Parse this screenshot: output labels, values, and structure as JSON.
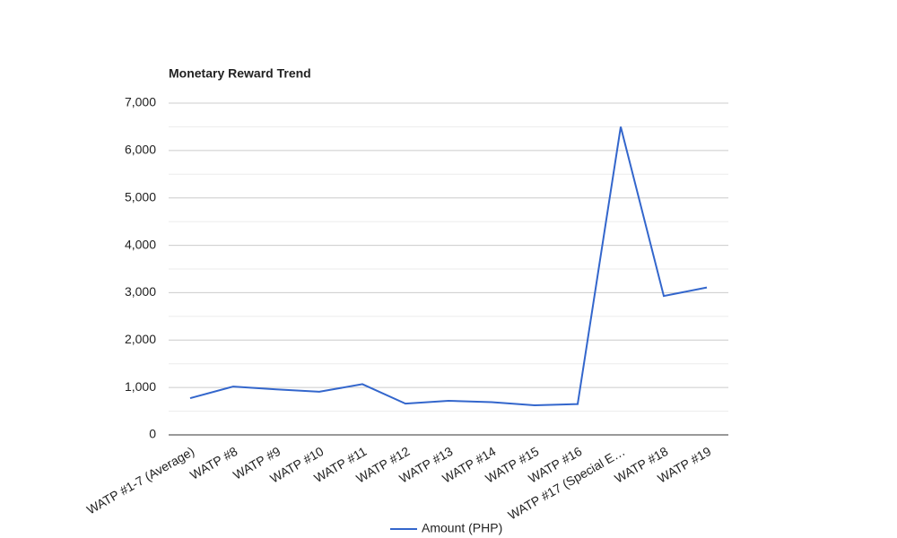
{
  "chart_data": {
    "type": "line",
    "title": "Monetary Reward Trend",
    "categories": [
      "WATP #1-7 (Average)",
      "WATP #8",
      "WATP #9",
      "WATP #10",
      "WATP #11",
      "WATP #12",
      "WATP #13",
      "WATP #14",
      "WATP #15",
      "WATP #16",
      "WATP #17 (Special E…",
      "WATP #18",
      "WATP #19"
    ],
    "series": [
      {
        "name": "Amount (PHP)",
        "color": "#3366cc",
        "values": [
          775,
          1020,
          960,
          910,
          1070,
          660,
          720,
          690,
          625,
          650,
          6500,
          2930,
          3110
        ]
      }
    ],
    "ylim": [
      0,
      7000
    ],
    "yticks": [
      0,
      {
        "value": 1000,
        "label": "1,000"
      },
      {
        "value": 2000,
        "label": "2,000"
      },
      {
        "value": 3000,
        "label": "3,000"
      },
      {
        "value": 4000,
        "label": "4,000"
      },
      {
        "value": 5000,
        "label": "5,000"
      },
      {
        "value": 6000,
        "label": "6,000"
      },
      {
        "value": 7000,
        "label": "7,000"
      }
    ],
    "grid": true,
    "minor_grid": true,
    "legend": "bottom"
  }
}
